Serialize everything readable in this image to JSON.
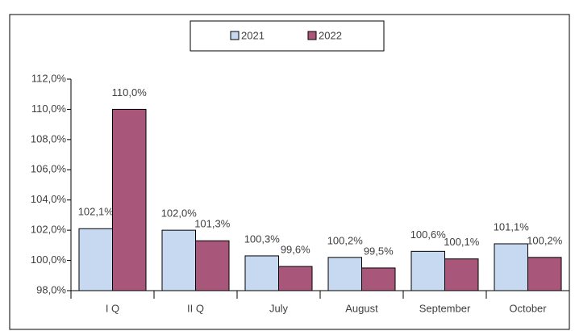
{
  "chart_data": {
    "type": "bar",
    "categories": [
      "I Q",
      "II Q",
      "July",
      "August",
      "September",
      "October"
    ],
    "series": [
      {
        "name": "2021",
        "color": "#c6d9f1",
        "values": [
          102.1,
          102.0,
          100.3,
          100.2,
          100.6,
          101.1
        ],
        "value_labels": [
          "102,1%",
          "102,0%",
          "100,3%",
          "100,2%",
          "100,6%",
          "101,1%"
        ]
      },
      {
        "name": "2022",
        "color": "#a8577b",
        "values": [
          110.0,
          101.3,
          99.6,
          99.5,
          100.1,
          100.2
        ],
        "value_labels": [
          "110,0%",
          "101,3%",
          "99,6%",
          "99,5%",
          "100,1%",
          "100,2%"
        ]
      }
    ],
    "ylim": [
      98,
      112
    ],
    "yticks": [
      {
        "value": 98,
        "label": "98,0%"
      },
      {
        "value": 100,
        "label": "100,0%"
      },
      {
        "value": 102,
        "label": "102,0%"
      },
      {
        "value": 104,
        "label": "104,0%"
      },
      {
        "value": 106,
        "label": "106,0%"
      },
      {
        "value": 108,
        "label": "108,0%"
      },
      {
        "value": 110,
        "label": "110,0%"
      },
      {
        "value": 112,
        "label": "112,0%"
      }
    ],
    "legend": "top",
    "grid": false
  }
}
